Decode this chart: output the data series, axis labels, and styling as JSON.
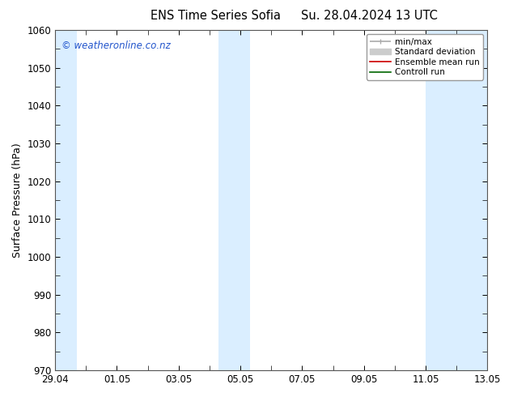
{
  "title_left": "ENS Time Series Sofia",
  "title_right": "Su. 28.04.2024 13 UTC",
  "ylabel": "Surface Pressure (hPa)",
  "ylim": [
    970,
    1060
  ],
  "yticks": [
    970,
    980,
    990,
    1000,
    1010,
    1020,
    1030,
    1040,
    1050,
    1060
  ],
  "xlim_start": 0.0,
  "xlim_end": 14.0,
  "xtick_labels": [
    "29.04",
    "01.05",
    "03.05",
    "05.05",
    "07.05",
    "09.05",
    "11.05",
    "13.05"
  ],
  "xtick_positions": [
    0,
    2,
    4,
    6,
    8,
    10,
    12,
    14
  ],
  "shaded_bands": [
    {
      "x_start": -0.1,
      "x_end": 0.7,
      "color": "#daeeff"
    },
    {
      "x_start": 5.3,
      "x_end": 6.3,
      "color": "#daeeff"
    },
    {
      "x_start": 12.0,
      "x_end": 14.1,
      "color": "#daeeff"
    }
  ],
  "watermark_text": "© weatheronline.co.nz",
  "watermark_color": "#2255cc",
  "legend_items": [
    {
      "label": "min/max",
      "color": "#aaaaaa",
      "lw": 1.2
    },
    {
      "label": "Standard deviation",
      "color": "#cccccc",
      "lw": 5
    },
    {
      "label": "Ensemble mean run",
      "color": "#cc0000",
      "lw": 1.2
    },
    {
      "label": "Controll run",
      "color": "#006600",
      "lw": 1.2
    }
  ],
  "bg_color": "#ffffff",
  "plot_bg_color": "#ffffff",
  "spine_color": "#555555",
  "tick_label_fontsize": 8.5,
  "axis_label_fontsize": 9,
  "title_fontsize": 10.5,
  "watermark_fontsize": 8.5
}
